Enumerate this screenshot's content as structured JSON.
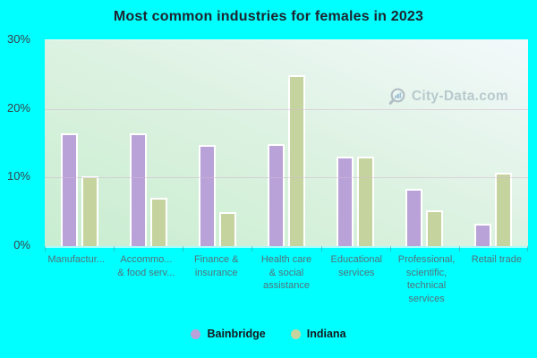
{
  "page": {
    "background": "#00ffff"
  },
  "header": {
    "title": "Most common industries for females in 2023"
  },
  "watermark": {
    "label": "City-Data.com",
    "icon": "magnifier-with-bars",
    "color": "#9db0ba"
  },
  "legend": [
    {
      "name": "Bainbridge",
      "color": "#b8a2d8"
    },
    {
      "name": "Indiana",
      "color": "#c5d49e"
    }
  ],
  "chart_data": {
    "type": "bar",
    "title": "Most common industries for females in 2023",
    "categories": [
      "Manufactur...",
      "Accommo... & food serv...",
      "Finance & insurance",
      "Health care & social assistance",
      "Educational services",
      "Professional, scientific, technical services",
      "Retail trade"
    ],
    "category_display_lines": [
      [
        "Manufactur..."
      ],
      [
        "Accommo...",
        "& food serv..."
      ],
      [
        "Finance &",
        "insurance"
      ],
      [
        "Health care",
        "& social",
        "assistance"
      ],
      [
        "Educational",
        "services"
      ],
      [
        "Professional,",
        "scientific,",
        "technical",
        "services"
      ],
      [
        "Retail trade"
      ]
    ],
    "series": [
      {
        "name": "Bainbridge",
        "color": "#b8a2d8",
        "values": [
          16.4,
          16.4,
          14.8,
          14.9,
          13.1,
          8.3,
          3.2
        ]
      },
      {
        "name": "Indiana",
        "color": "#c5d49e",
        "values": [
          10.2,
          7.0,
          4.9,
          24.9,
          13.0,
          5.2,
          10.7
        ]
      }
    ],
    "ylabel": "",
    "xlabel": "",
    "ylim": [
      0,
      30
    ],
    "yticks": [
      {
        "value": 0,
        "label": "0%"
      },
      {
        "value": 10,
        "label": "10%"
      },
      {
        "value": 20,
        "label": "20%"
      },
      {
        "value": 30,
        "label": "30%"
      }
    ],
    "grid": "horizontal",
    "legend_position": "bottom",
    "plot_background_gradient": [
      "#f3f9fb",
      "#c8edcf"
    ],
    "gridline_color": "#d4b8d2",
    "bar_border_color": "#ffffff"
  }
}
